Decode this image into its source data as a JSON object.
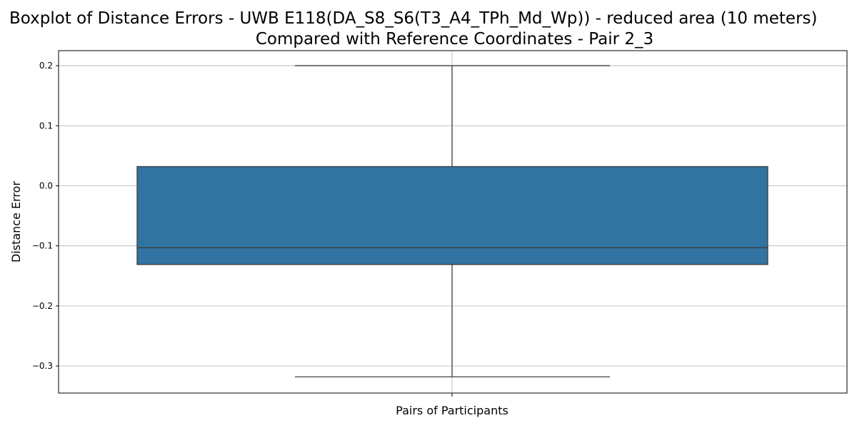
{
  "chart_data": {
    "type": "box",
    "title_line1": "Boxplot of Distance Errors - UWB E118(DA_S8_S6(T3_A4_TPh_Md_Wp)) - reduced area (10 meters)",
    "title_line2": "Compared with Reference Coordinates - Pair 2_3",
    "xlabel": "Pairs of Participants",
    "ylabel": "Distance Error",
    "ylim": [
      -0.345,
      0.225
    ],
    "yticks": [
      0.2,
      0.1,
      0.0,
      -0.1,
      -0.2,
      -0.3
    ],
    "ytick_labels": [
      "0.2",
      "0.1",
      "0.0",
      "−0.1",
      "−0.2",
      "−0.3"
    ],
    "grid": true,
    "box": {
      "whisker_high": 0.2,
      "q3": 0.032,
      "median": -0.103,
      "q1": -0.131,
      "whisker_low": -0.318
    },
    "box_color": "#3274a1",
    "line_color": "#3d3d3d"
  }
}
